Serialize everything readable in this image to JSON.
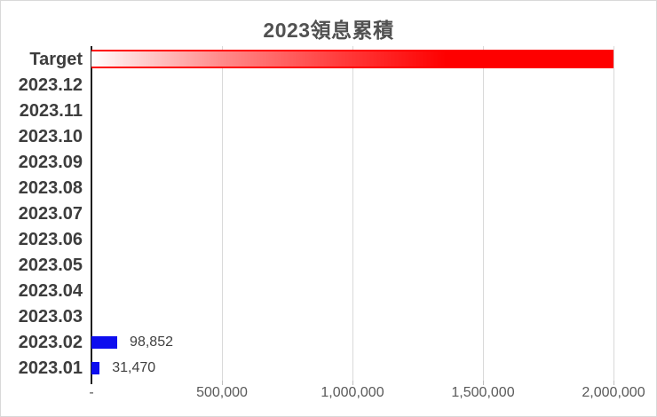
{
  "chart": {
    "title": "2023領息累積"
  },
  "chart_data": {
    "type": "bar",
    "orientation": "horizontal",
    "title": "2023領息累積",
    "xlabel": "",
    "ylabel": "",
    "xlim": [
      0,
      2000000
    ],
    "grid": true,
    "legend": "none",
    "x_ticks": [
      {
        "value": 0,
        "label": "-"
      },
      {
        "value": 500000,
        "label": "500,000"
      },
      {
        "value": 1000000,
        "label": "1,000,000"
      },
      {
        "value": 1500000,
        "label": "1,500,000"
      },
      {
        "value": 2000000,
        "label": "2,000,000"
      }
    ],
    "rows": [
      {
        "category": "Target",
        "value": 2000000,
        "series": "target",
        "data_label": ""
      },
      {
        "category": "2023.12",
        "value": 0,
        "series": "monthly",
        "data_label": ""
      },
      {
        "category": "2023.11",
        "value": 0,
        "series": "monthly",
        "data_label": ""
      },
      {
        "category": "2023.10",
        "value": 0,
        "series": "monthly",
        "data_label": ""
      },
      {
        "category": "2023.09",
        "value": 0,
        "series": "monthly",
        "data_label": ""
      },
      {
        "category": "2023.08",
        "value": 0,
        "series": "monthly",
        "data_label": ""
      },
      {
        "category": "2023.07",
        "value": 0,
        "series": "monthly",
        "data_label": ""
      },
      {
        "category": "2023.06",
        "value": 0,
        "series": "monthly",
        "data_label": ""
      },
      {
        "category": "2023.05",
        "value": 0,
        "series": "monthly",
        "data_label": ""
      },
      {
        "category": "2023.04",
        "value": 0,
        "series": "monthly",
        "data_label": ""
      },
      {
        "category": "2023.03",
        "value": 0,
        "series": "monthly",
        "data_label": ""
      },
      {
        "category": "2023.02",
        "value": 98852,
        "series": "monthly",
        "data_label": "98,852"
      },
      {
        "category": "2023.01",
        "value": 31470,
        "series": "monthly",
        "data_label": "31,470"
      }
    ],
    "colors": {
      "monthly_bar": "#0e0eef",
      "target_bar": "#fe0000",
      "gridline": "#d9d9d9",
      "tick_mark": "#bfbfbf",
      "axis_line": "#1f1f1f",
      "title": "#515151",
      "category_label": "#3d3d3d",
      "tick_label": "#595959",
      "data_label": "#404040"
    }
  }
}
